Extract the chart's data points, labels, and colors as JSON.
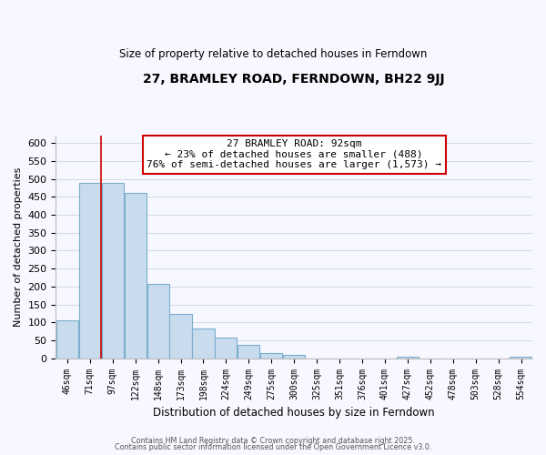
{
  "title": "27, BRAMLEY ROAD, FERNDOWN, BH22 9JJ",
  "subtitle": "Size of property relative to detached houses in Ferndown",
  "xlabel": "Distribution of detached houses by size in Ferndown",
  "ylabel": "Number of detached properties",
  "bar_color": "#c8dcee",
  "bar_edge_color": "#7aaecc",
  "bins": [
    "46sqm",
    "71sqm",
    "97sqm",
    "122sqm",
    "148sqm",
    "173sqm",
    "198sqm",
    "224sqm",
    "249sqm",
    "275sqm",
    "300sqm",
    "325sqm",
    "351sqm",
    "376sqm",
    "401sqm",
    "427sqm",
    "452sqm",
    "478sqm",
    "503sqm",
    "528sqm",
    "554sqm"
  ],
  "values": [
    105,
    490,
    490,
    460,
    208,
    123,
    82,
    58,
    37,
    15,
    10,
    0,
    0,
    0,
    0,
    5,
    0,
    0,
    0,
    0,
    5
  ],
  "vline_x": 1.5,
  "annotation_title": "27 BRAMLEY ROAD: 92sqm",
  "annotation_line1": "← 23% of detached houses are smaller (488)",
  "annotation_line2": "76% of semi-detached houses are larger (1,573) →",
  "vline_color": "#cc0000",
  "ylim": [
    0,
    620
  ],
  "yticks": [
    0,
    50,
    100,
    150,
    200,
    250,
    300,
    350,
    400,
    450,
    500,
    550,
    600
  ],
  "footnote1": "Contains HM Land Registry data © Crown copyright and database right 2025.",
  "footnote2": "Contains public sector information licensed under the Open Government Licence v3.0.",
  "background_color": "#f7f7ff",
  "grid_color": "#d4dce8"
}
